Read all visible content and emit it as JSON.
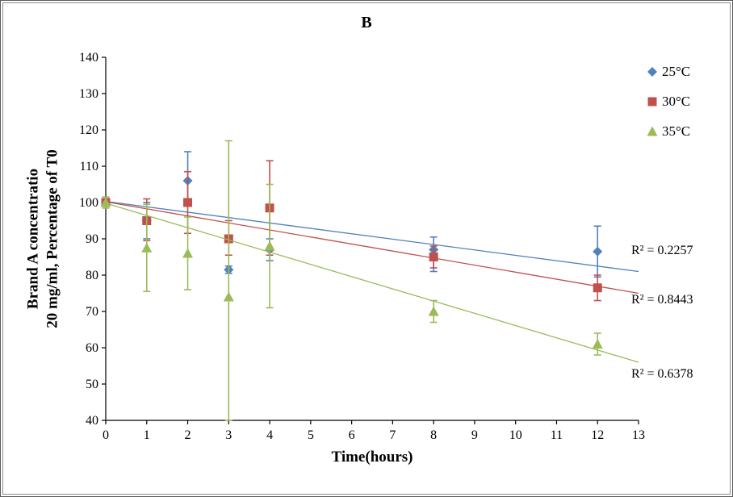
{
  "chart_data": {
    "type": "scatter",
    "title": "B",
    "xlabel": "Time(hours)",
    "ylabel_line1": "Brand A concentratio",
    "ylabel_line2": "20 mg/ml, Percentage of T0",
    "xlim": [
      0,
      13
    ],
    "ylim": [
      40,
      140
    ],
    "x_ticks": [
      0,
      1,
      2,
      3,
      4,
      5,
      6,
      7,
      8,
      9,
      10,
      11,
      12,
      13
    ],
    "y_ticks": [
      40,
      50,
      60,
      70,
      80,
      90,
      100,
      110,
      120,
      130,
      140
    ],
    "grid": false,
    "legend_position": "right",
    "axis_color": "#000000",
    "series": [
      {
        "name": "25°C",
        "marker": "diamond",
        "color": "#4F81BD",
        "x": [
          0,
          1,
          2,
          3,
          4,
          8,
          12
        ],
        "y": [
          100,
          95,
          106,
          81.5,
          87,
          87,
          86.5
        ],
        "err_plus": [
          1.5,
          5,
          8,
          1,
          3,
          3.5,
          7
        ],
        "err_minus": [
          1.5,
          5,
          7,
          1,
          3,
          6,
          7
        ],
        "trend": {
          "x": [
            0,
            13
          ],
          "y": [
            100.3,
            81
          ]
        },
        "r2": "R² = 0.2257"
      },
      {
        "name": "30°C",
        "marker": "square",
        "color": "#C0504D",
        "x": [
          0,
          1,
          2,
          3,
          4,
          8,
          12
        ],
        "y": [
          100,
          95,
          100,
          90,
          98.5,
          85,
          76.5
        ],
        "err_plus": [
          1.5,
          6,
          8.5,
          5,
          13,
          3,
          3.5
        ],
        "err_minus": [
          1.5,
          5.5,
          8.5,
          4.5,
          13,
          3,
          3.5
        ],
        "trend": {
          "x": [
            0,
            13
          ],
          "y": [
            100.2,
            75
          ]
        },
        "r2": "R² = 0.8443"
      },
      {
        "name": "35°C",
        "marker": "triangle",
        "color": "#9BBB59",
        "x": [
          0,
          1,
          2,
          3,
          4,
          8,
          12
        ],
        "y": [
          100,
          87.5,
          86,
          74,
          88,
          70,
          61
        ],
        "err_plus": [
          1.5,
          12,
          10,
          43,
          17,
          3,
          3
        ],
        "err_minus": [
          1.5,
          12,
          10,
          34,
          17,
          3,
          3
        ],
        "trend": {
          "x": [
            0,
            13
          ],
          "y": [
            99.8,
            56
          ]
        },
        "r2": "R² = 0.6378"
      }
    ],
    "r2_labels": [
      {
        "text": "R² = 0.2257",
        "y_value": 86.5
      },
      {
        "text": "R² = 0.8443",
        "y_value": 73
      },
      {
        "text": "R² = 0.6378",
        "y_value": 52.5
      }
    ]
  }
}
